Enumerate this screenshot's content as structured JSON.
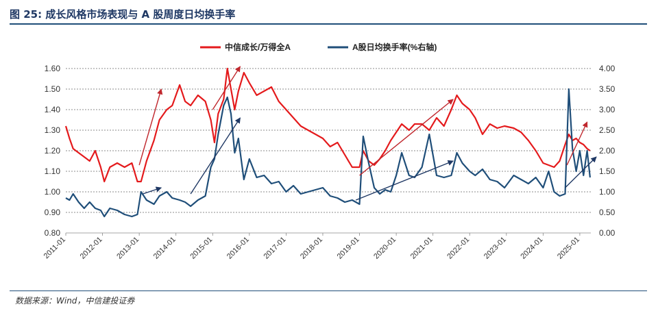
{
  "title": "图 25: 成长风格市场表现与 A 股周度日均换手率",
  "source": "数据来源：Wind，中信建投证券",
  "chart_data": {
    "type": "line",
    "legend_position": "top",
    "grid": "horizontal-dashed",
    "x_categories": [
      "2011-01",
      "2012-01",
      "2013-01",
      "2014-01",
      "2015-01",
      "2016-01",
      "2017-01",
      "2018-01",
      "2019-01",
      "2020-01",
      "2021-01",
      "2022-01",
      "2023-01",
      "2024-01",
      "2025-01"
    ],
    "x_range": [
      2011.0,
      2025.3
    ],
    "left_axis": {
      "ylim": [
        0.8,
        1.6
      ],
      "ticks": [
        "0.80",
        "0.90",
        "1.00",
        "1.10",
        "1.20",
        "1.30",
        "1.40",
        "1.50",
        "1.60"
      ]
    },
    "right_axis": {
      "ylim": [
        0.0,
        4.0
      ],
      "ticks": [
        "0.00",
        "0.50",
        "1.00",
        "1.50",
        "2.00",
        "2.50",
        "3.00",
        "3.50",
        "4.00"
      ]
    },
    "series": [
      {
        "name": "中信成长/万得全A",
        "axis": "left",
        "color": "#e41a1c",
        "points": [
          [
            2011.0,
            1.32
          ],
          [
            2011.1,
            1.26
          ],
          [
            2011.2,
            1.21
          ],
          [
            2011.35,
            1.19
          ],
          [
            2011.5,
            1.17
          ],
          [
            2011.65,
            1.15
          ],
          [
            2011.8,
            1.2
          ],
          [
            2011.95,
            1.12
          ],
          [
            2012.05,
            1.05
          ],
          [
            2012.2,
            1.12
          ],
          [
            2012.4,
            1.14
          ],
          [
            2012.6,
            1.12
          ],
          [
            2012.8,
            1.14
          ],
          [
            2012.95,
            1.05
          ],
          [
            2013.05,
            1.05
          ],
          [
            2013.2,
            1.15
          ],
          [
            2013.4,
            1.25
          ],
          [
            2013.55,
            1.35
          ],
          [
            2013.75,
            1.4
          ],
          [
            2013.9,
            1.42
          ],
          [
            2014.1,
            1.52
          ],
          [
            2014.25,
            1.44
          ],
          [
            2014.4,
            1.42
          ],
          [
            2014.6,
            1.47
          ],
          [
            2014.8,
            1.44
          ],
          [
            2014.95,
            1.35
          ],
          [
            2015.05,
            1.24
          ],
          [
            2015.15,
            1.38
          ],
          [
            2015.3,
            1.45
          ],
          [
            2015.4,
            1.6
          ],
          [
            2015.5,
            1.5
          ],
          [
            2015.6,
            1.4
          ],
          [
            2015.7,
            1.49
          ],
          [
            2015.85,
            1.58
          ],
          [
            2016.0,
            1.53
          ],
          [
            2016.2,
            1.47
          ],
          [
            2016.4,
            1.49
          ],
          [
            2016.6,
            1.51
          ],
          [
            2016.8,
            1.44
          ],
          [
            2017.0,
            1.4
          ],
          [
            2017.2,
            1.36
          ],
          [
            2017.4,
            1.32
          ],
          [
            2017.6,
            1.3
          ],
          [
            2017.8,
            1.28
          ],
          [
            2018.0,
            1.26
          ],
          [
            2018.2,
            1.22
          ],
          [
            2018.4,
            1.24
          ],
          [
            2018.6,
            1.18
          ],
          [
            2018.8,
            1.12
          ],
          [
            2019.0,
            1.12
          ],
          [
            2019.1,
            1.2
          ],
          [
            2019.25,
            1.15
          ],
          [
            2019.4,
            1.13
          ],
          [
            2019.55,
            1.16
          ],
          [
            2019.7,
            1.2
          ],
          [
            2019.85,
            1.25
          ],
          [
            2020.0,
            1.29
          ],
          [
            2020.15,
            1.33
          ],
          [
            2020.35,
            1.3
          ],
          [
            2020.5,
            1.33
          ],
          [
            2020.7,
            1.33
          ],
          [
            2020.9,
            1.3
          ],
          [
            2021.1,
            1.36
          ],
          [
            2021.3,
            1.32
          ],
          [
            2021.5,
            1.4
          ],
          [
            2021.65,
            1.47
          ],
          [
            2021.8,
            1.43
          ],
          [
            2022.0,
            1.4
          ],
          [
            2022.15,
            1.36
          ],
          [
            2022.35,
            1.28
          ],
          [
            2022.55,
            1.33
          ],
          [
            2022.75,
            1.31
          ],
          [
            2022.95,
            1.32
          ],
          [
            2023.2,
            1.31
          ],
          [
            2023.4,
            1.29
          ],
          [
            2023.6,
            1.25
          ],
          [
            2023.8,
            1.2
          ],
          [
            2024.0,
            1.14
          ],
          [
            2024.15,
            1.13
          ],
          [
            2024.3,
            1.12
          ],
          [
            2024.45,
            1.15
          ],
          [
            2024.6,
            1.23
          ],
          [
            2024.7,
            1.28
          ],
          [
            2024.8,
            1.25
          ],
          [
            2024.9,
            1.26
          ],
          [
            2025.0,
            1.24
          ],
          [
            2025.1,
            1.23
          ],
          [
            2025.2,
            1.21
          ],
          [
            2025.28,
            1.2
          ]
        ]
      },
      {
        "name": "A股日均换手率(%右轴)",
        "axis": "right",
        "color": "#1f4e79",
        "points": [
          [
            2011.0,
            0.85
          ],
          [
            2011.1,
            0.8
          ],
          [
            2011.2,
            0.95
          ],
          [
            2011.35,
            0.75
          ],
          [
            2011.5,
            0.6
          ],
          [
            2011.65,
            0.75
          ],
          [
            2011.8,
            0.6
          ],
          [
            2011.95,
            0.55
          ],
          [
            2012.05,
            0.4
          ],
          [
            2012.2,
            0.6
          ],
          [
            2012.4,
            0.55
          ],
          [
            2012.6,
            0.45
          ],
          [
            2012.8,
            0.4
          ],
          [
            2012.95,
            0.45
          ],
          [
            2013.05,
            1.0
          ],
          [
            2013.2,
            0.8
          ],
          [
            2013.4,
            0.7
          ],
          [
            2013.55,
            0.9
          ],
          [
            2013.75,
            1.0
          ],
          [
            2013.9,
            0.85
          ],
          [
            2014.1,
            0.8
          ],
          [
            2014.25,
            0.75
          ],
          [
            2014.4,
            0.65
          ],
          [
            2014.6,
            0.8
          ],
          [
            2014.8,
            0.9
          ],
          [
            2014.95,
            1.6
          ],
          [
            2015.05,
            1.8
          ],
          [
            2015.15,
            2.4
          ],
          [
            2015.3,
            3.1
          ],
          [
            2015.4,
            3.3
          ],
          [
            2015.5,
            2.9
          ],
          [
            2015.6,
            1.95
          ],
          [
            2015.7,
            2.3
          ],
          [
            2015.85,
            1.3
          ],
          [
            2016.0,
            1.8
          ],
          [
            2016.2,
            1.35
          ],
          [
            2016.4,
            1.4
          ],
          [
            2016.6,
            1.2
          ],
          [
            2016.8,
            1.25
          ],
          [
            2017.0,
            1.0
          ],
          [
            2017.2,
            1.15
          ],
          [
            2017.4,
            0.95
          ],
          [
            2017.6,
            1.0
          ],
          [
            2017.8,
            1.05
          ],
          [
            2018.0,
            1.1
          ],
          [
            2018.2,
            0.9
          ],
          [
            2018.4,
            0.85
          ],
          [
            2018.6,
            0.75
          ],
          [
            2018.8,
            0.8
          ],
          [
            2019.0,
            0.7
          ],
          [
            2019.1,
            2.35
          ],
          [
            2019.25,
            1.7
          ],
          [
            2019.4,
            1.1
          ],
          [
            2019.55,
            0.95
          ],
          [
            2019.7,
            1.05
          ],
          [
            2019.85,
            1.0
          ],
          [
            2020.0,
            1.4
          ],
          [
            2020.15,
            1.95
          ],
          [
            2020.35,
            1.4
          ],
          [
            2020.5,
            1.35
          ],
          [
            2020.7,
            1.6
          ],
          [
            2020.9,
            2.4
          ],
          [
            2021.1,
            1.4
          ],
          [
            2021.3,
            1.35
          ],
          [
            2021.5,
            1.4
          ],
          [
            2021.65,
            1.95
          ],
          [
            2021.8,
            1.7
          ],
          [
            2022.0,
            1.5
          ],
          [
            2022.15,
            1.4
          ],
          [
            2022.35,
            1.55
          ],
          [
            2022.55,
            1.3
          ],
          [
            2022.75,
            1.25
          ],
          [
            2022.95,
            1.1
          ],
          [
            2023.2,
            1.4
          ],
          [
            2023.4,
            1.3
          ],
          [
            2023.6,
            1.2
          ],
          [
            2023.8,
            1.35
          ],
          [
            2024.0,
            1.1
          ],
          [
            2024.15,
            1.5
          ],
          [
            2024.3,
            1.0
          ],
          [
            2024.45,
            0.9
          ],
          [
            2024.6,
            0.95
          ],
          [
            2024.7,
            3.5
          ],
          [
            2024.8,
            2.05
          ],
          [
            2024.9,
            1.5
          ],
          [
            2025.0,
            2.0
          ],
          [
            2025.1,
            1.4
          ],
          [
            2025.2,
            2.0
          ],
          [
            2025.28,
            1.35
          ]
        ]
      }
    ],
    "trend_arrows": [
      {
        "color": "#c0272d",
        "axis": "left",
        "from": [
          2013.0,
          1.13
        ],
        "to": [
          2013.6,
          1.5
        ]
      },
      {
        "color": "#c0272d",
        "axis": "left",
        "from": [
          2015.0,
          1.4
        ],
        "to": [
          2015.75,
          1.61
        ]
      },
      {
        "color": "#c0272d",
        "axis": "left",
        "from": [
          2019.0,
          1.08
        ],
        "to": [
          2021.55,
          1.45
        ]
      },
      {
        "color": "#c0272d",
        "axis": "left",
        "from": [
          2024.65,
          1.13
        ],
        "to": [
          2025.2,
          1.34
        ]
      },
      {
        "color": "#1f3864",
        "axis": "right",
        "from": [
          2013.1,
          0.95
        ],
        "to": [
          2013.6,
          1.1
        ]
      },
      {
        "color": "#1f3864",
        "axis": "right",
        "from": [
          2014.4,
          0.95
        ],
        "to": [
          2015.75,
          2.8
        ]
      },
      {
        "color": "#1f3864",
        "axis": "right",
        "from": [
          2018.9,
          0.8
        ],
        "to": [
          2021.55,
          1.75
        ]
      },
      {
        "color": "#1f3864",
        "axis": "right",
        "from": [
          2024.6,
          1.1
        ],
        "to": [
          2025.45,
          1.85
        ]
      }
    ]
  }
}
